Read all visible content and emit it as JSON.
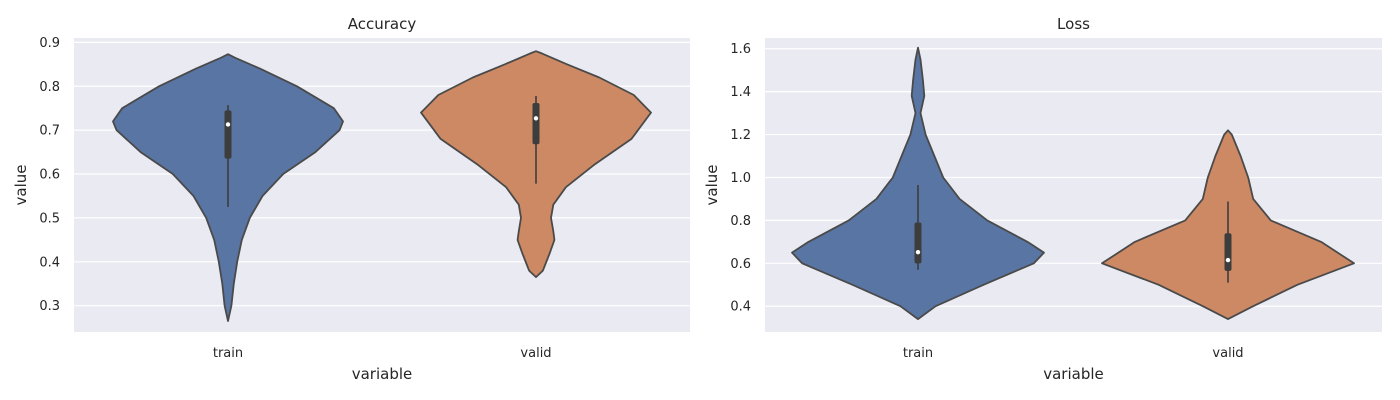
{
  "chart_data": [
    {
      "type": "violin",
      "title": "Accuracy",
      "xlabel": "variable",
      "ylabel": "value",
      "categories": [
        "train",
        "valid"
      ],
      "yticks": [
        0.3,
        0.4,
        0.5,
        0.6,
        0.7,
        0.8,
        0.9
      ],
      "ylim": [
        0.24,
        0.91
      ],
      "series": [
        {
          "category": "train",
          "color": "#5875a4",
          "density": [
            [
              0.265,
              0.0
            ],
            [
              0.3,
              0.03
            ],
            [
              0.35,
              0.05
            ],
            [
              0.4,
              0.08
            ],
            [
              0.45,
              0.12
            ],
            [
              0.5,
              0.19
            ],
            [
              0.55,
              0.3
            ],
            [
              0.6,
              0.48
            ],
            [
              0.65,
              0.76
            ],
            [
              0.7,
              0.97
            ],
            [
              0.72,
              1.0
            ],
            [
              0.75,
              0.92
            ],
            [
              0.8,
              0.6
            ],
            [
              0.84,
              0.28
            ],
            [
              0.865,
              0.06
            ],
            [
              0.873,
              0.0
            ]
          ],
          "whisker": [
            0.525,
            0.757
          ],
          "box": [
            0.635,
            0.745
          ],
          "median": 0.713
        },
        {
          "category": "valid",
          "color": "#cc8963",
          "density": [
            [
              0.365,
              0.0
            ],
            [
              0.38,
              0.06
            ],
            [
              0.42,
              0.12
            ],
            [
              0.45,
              0.16
            ],
            [
              0.47,
              0.15
            ],
            [
              0.5,
              0.13
            ],
            [
              0.53,
              0.15
            ],
            [
              0.57,
              0.26
            ],
            [
              0.62,
              0.5
            ],
            [
              0.68,
              0.83
            ],
            [
              0.74,
              1.0
            ],
            [
              0.78,
              0.85
            ],
            [
              0.82,
              0.55
            ],
            [
              0.85,
              0.27
            ],
            [
              0.875,
              0.05
            ],
            [
              0.88,
              0.0
            ]
          ],
          "whisker": [
            0.578,
            0.778
          ],
          "box": [
            0.668,
            0.762
          ],
          "median": 0.727
        }
      ]
    },
    {
      "type": "violin",
      "title": "Loss",
      "xlabel": "variable",
      "ylabel": "value",
      "categories": [
        "train",
        "valid"
      ],
      "yticks": [
        0.4,
        0.6,
        0.8,
        1.0,
        1.2,
        1.4,
        1.6
      ],
      "ylim": [
        0.28,
        1.65
      ],
      "series": [
        {
          "category": "train",
          "color": "#5875a4",
          "density": [
            [
              0.34,
              0.0
            ],
            [
              0.4,
              0.14
            ],
            [
              0.5,
              0.52
            ],
            [
              0.6,
              0.92
            ],
            [
              0.65,
              1.0
            ],
            [
              0.7,
              0.87
            ],
            [
              0.8,
              0.55
            ],
            [
              0.9,
              0.33
            ],
            [
              1.0,
              0.2
            ],
            [
              1.1,
              0.13
            ],
            [
              1.2,
              0.06
            ],
            [
              1.3,
              0.02
            ],
            [
              1.38,
              0.05
            ],
            [
              1.45,
              0.04
            ],
            [
              1.55,
              0.02
            ],
            [
              1.605,
              0.0
            ]
          ],
          "whisker": [
            0.57,
            0.965
          ],
          "box": [
            0.6,
            0.79
          ],
          "median": 0.652
        },
        {
          "category": "valid",
          "color": "#cc8963",
          "density": [
            [
              0.34,
              0.0
            ],
            [
              0.4,
              0.2
            ],
            [
              0.5,
              0.55
            ],
            [
              0.6,
              1.0
            ],
            [
              0.7,
              0.74
            ],
            [
              0.8,
              0.34
            ],
            [
              0.9,
              0.2
            ],
            [
              1.0,
              0.16
            ],
            [
              1.1,
              0.1
            ],
            [
              1.2,
              0.03
            ],
            [
              1.22,
              0.0
            ]
          ],
          "whisker": [
            0.51,
            0.888
          ],
          "box": [
            0.565,
            0.74
          ],
          "median": 0.615
        }
      ]
    }
  ]
}
